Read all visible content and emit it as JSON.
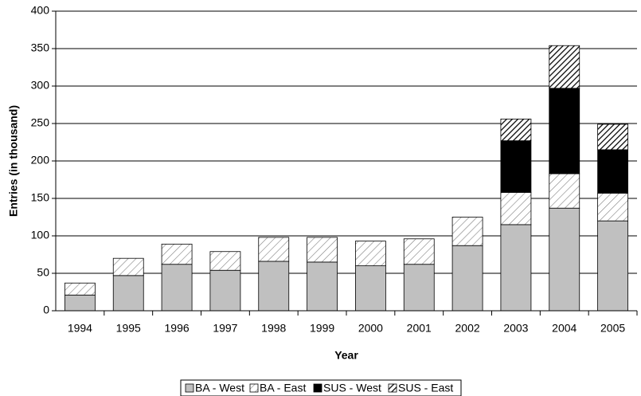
{
  "chart_data": {
    "type": "bar",
    "stacked": true,
    "x_label": "Year",
    "y_label": "Entries (in thousand)",
    "categories": [
      "1994",
      "1995",
      "1996",
      "1997",
      "1998",
      "1999",
      "2000",
      "2001",
      "2002",
      "2003",
      "2004",
      "2005"
    ],
    "series": [
      {
        "name": "BA - West",
        "color": "#c0c0c0",
        "hatch": null,
        "values": [
          21,
          47,
          62,
          54,
          66,
          65,
          60,
          62,
          87,
          115,
          137,
          120
        ]
      },
      {
        "name": "BA - East",
        "color": "#ffffff",
        "hatch": "#808080",
        "values": [
          16,
          23,
          27,
          25,
          32,
          33,
          33,
          34,
          38,
          43,
          46,
          37
        ]
      },
      {
        "name": "SUS - West",
        "color": "#000000",
        "hatch": null,
        "values": [
          null,
          null,
          null,
          null,
          null,
          null,
          null,
          null,
          null,
          69,
          114,
          58
        ]
      },
      {
        "name": "SUS - East",
        "color": "#ffffff",
        "hatch": "#000000",
        "values": [
          null,
          null,
          null,
          null,
          null,
          null,
          null,
          null,
          null,
          29,
          57,
          34
        ]
      }
    ],
    "ylim": [
      0,
      400
    ],
    "yticks": [
      0,
      50,
      100,
      150,
      200,
      250,
      300,
      350,
      400
    ],
    "grid": true,
    "legend": "bottom"
  }
}
